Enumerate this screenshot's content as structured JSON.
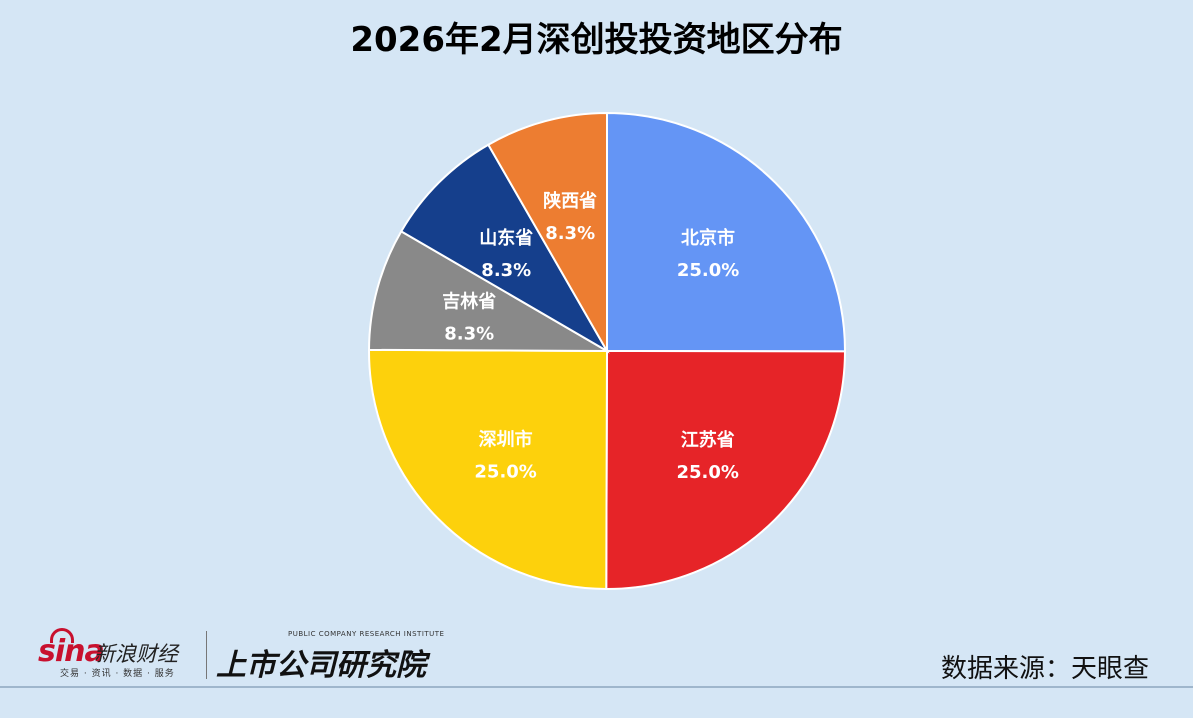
{
  "chart_data": {
    "type": "pie",
    "title": "2026年2月深创投投资地区分布",
    "slices": [
      {
        "label": "北京市",
        "value": 25.0,
        "display": "25.0%",
        "color": "#6495f5"
      },
      {
        "label": "江苏省",
        "value": 25.0,
        "display": "25.0%",
        "color": "#e62428"
      },
      {
        "label": "深圳市",
        "value": 25.0,
        "display": "25.0%",
        "color": "#fdd10c"
      },
      {
        "label": "吉林省",
        "value": 8.3,
        "display": "8.3%",
        "color": "#898989"
      },
      {
        "label": "山东省",
        "value": 8.3,
        "display": "8.3%",
        "color": "#153f8c"
      },
      {
        "label": "陕西省",
        "value": 8.3,
        "display": "8.3%",
        "color": "#ed7d31"
      }
    ],
    "start_angle": "12 o'clock",
    "direction": "clockwise"
  },
  "footer": {
    "source": "数据来源：天眼查",
    "sina_logo_word": "sina",
    "sina_logo_name": "新浪财经",
    "sina_logo_sub": "交易 · 资讯 · 数据 · 服务",
    "research_logo_en": "PUBLIC COMPANY RESEARCH INSTITUTE",
    "research_logo_cn": "上市公司研究院"
  }
}
